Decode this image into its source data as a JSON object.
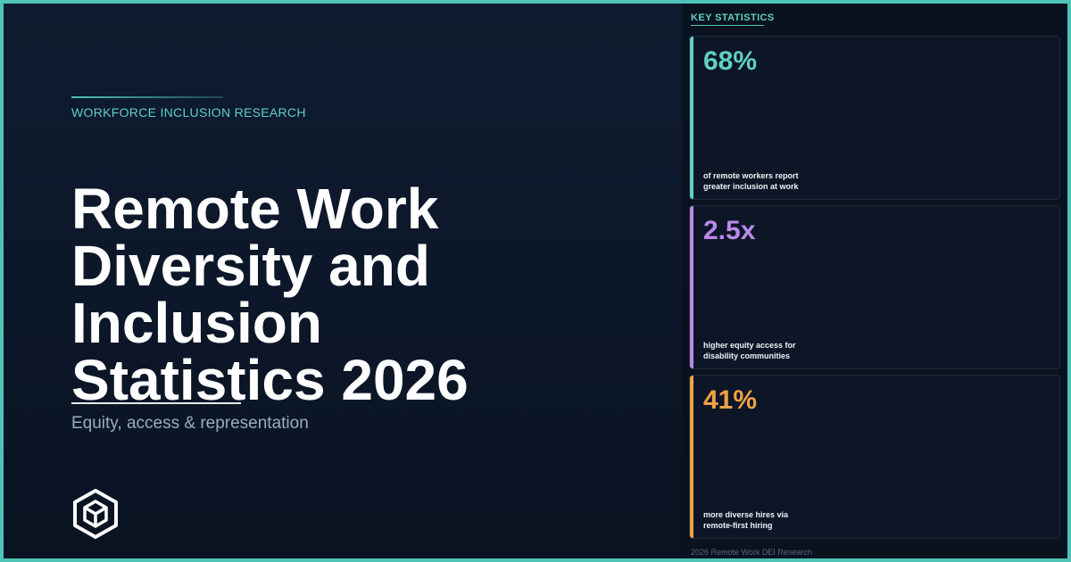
{
  "hero": {
    "eyebrow": "WORKFORCE INCLUSION RESEARCH",
    "title_lines": [
      "Remote Work",
      "Diversity and",
      "Inclusion",
      "Statistics 2026"
    ],
    "subtitle": "Equity, access & representation",
    "logo_icon": "hexagon-cube-logo-icon"
  },
  "sidebar": {
    "section_label": "KEY STATISTICS",
    "stats": [
      {
        "value": "68%",
        "description_lines": [
          "of remote workers report",
          "greater inclusion at work"
        ],
        "accent": "#5fd0c3"
      },
      {
        "value": "2.5x",
        "description_lines": [
          "higher equity access for",
          "disability communities"
        ],
        "accent": "#b98ae8"
      },
      {
        "value": "41%",
        "description_lines": [
          "more diverse hires via",
          "remote-first hiring"
        ],
        "accent": "#f0a245"
      }
    ],
    "footer_credit": "2026 Remote Work DEI Research"
  },
  "colors": {
    "frame": "#4ec3b8",
    "background": "#0c1627",
    "title": "#ffffff",
    "subtitle": "#9aacc2"
  }
}
